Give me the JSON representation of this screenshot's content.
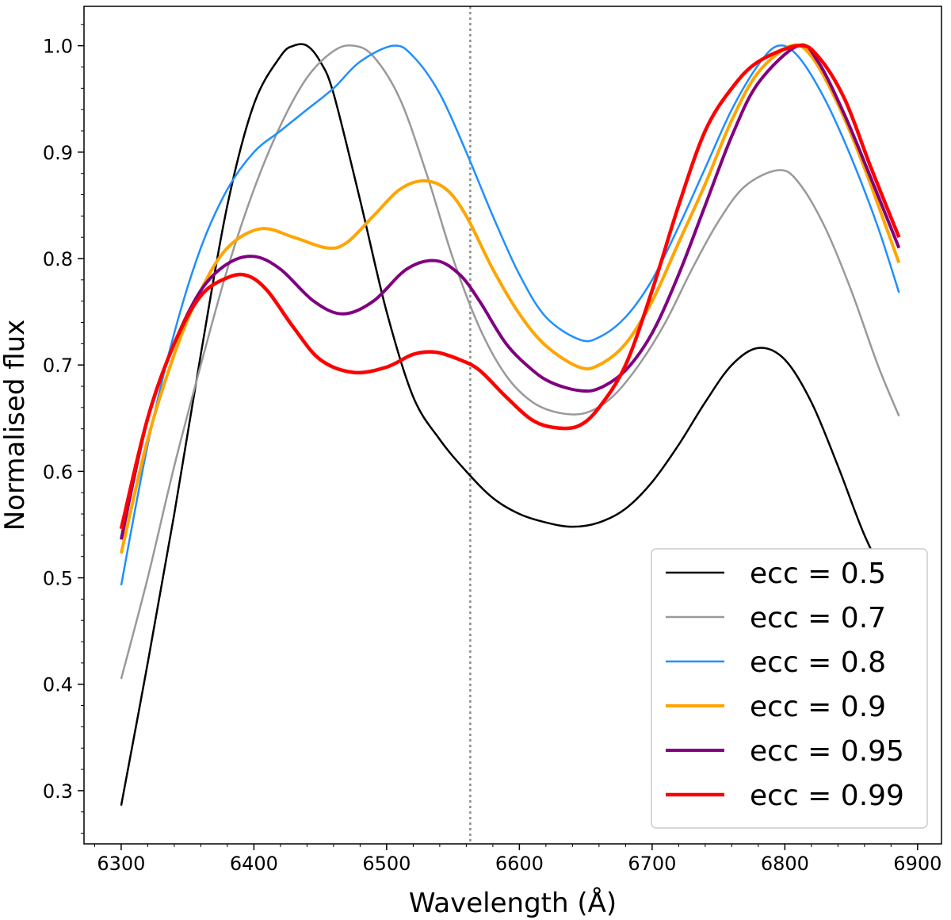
{
  "chart_data": {
    "type": "line",
    "title": "",
    "xlabel": "Wavelength (Å)",
    "ylabel": "Normalised flux",
    "xlim": [
      6272,
      6918
    ],
    "ylim": [
      0.25,
      1.037
    ],
    "xticks": [
      6300,
      6400,
      6500,
      6600,
      6700,
      6800,
      6900
    ],
    "yticks": [
      0.3,
      0.4,
      0.5,
      0.6,
      0.7,
      0.8,
      0.9,
      1.0
    ],
    "reference_line": {
      "x": 6563,
      "style": "dotted",
      "color": "#8c8c8c"
    },
    "legend_position": "lower-right",
    "grid": false,
    "series": [
      {
        "name": "ecc = 0.5",
        "color": "#000000",
        "width": 2.5,
        "x": [
          6300,
          6320,
          6340,
          6360,
          6380,
          6400,
          6420,
          6430,
          6440,
          6450,
          6460,
          6480,
          6500,
          6520,
          6540,
          6560,
          6580,
          6600,
          6620,
          6640,
          6660,
          6680,
          6700,
          6720,
          6740,
          6760,
          6780,
          6800,
          6820,
          6840,
          6860,
          6880,
          6886
        ],
        "y": [
          0.286,
          0.42,
          0.56,
          0.71,
          0.85,
          0.945,
          0.99,
          1.0,
          1.0,
          0.985,
          0.955,
          0.855,
          0.75,
          0.67,
          0.63,
          0.6,
          0.575,
          0.56,
          0.552,
          0.548,
          0.552,
          0.565,
          0.59,
          0.625,
          0.665,
          0.7,
          0.716,
          0.705,
          0.665,
          0.605,
          0.54,
          0.49,
          0.48
        ]
      },
      {
        "name": "ecc = 0.7",
        "color": "#999999",
        "width": 2.5,
        "x": [
          6300,
          6320,
          6340,
          6360,
          6380,
          6400,
          6420,
          6440,
          6460,
          6475,
          6490,
          6510,
          6530,
          6550,
          6570,
          6590,
          6610,
          6630,
          6650,
          6670,
          6690,
          6710,
          6730,
          6750,
          6770,
          6795,
          6810,
          6830,
          6850,
          6870,
          6886
        ],
        "y": [
          0.405,
          0.5,
          0.605,
          0.7,
          0.79,
          0.865,
          0.925,
          0.97,
          0.995,
          1.0,
          0.99,
          0.95,
          0.88,
          0.8,
          0.735,
          0.69,
          0.665,
          0.655,
          0.655,
          0.67,
          0.7,
          0.74,
          0.79,
          0.835,
          0.868,
          0.883,
          0.872,
          0.83,
          0.77,
          0.7,
          0.652
        ]
      },
      {
        "name": "ecc = 0.8",
        "color": "#1f8fff",
        "width": 2.5,
        "x": [
          6300,
          6320,
          6340,
          6360,
          6380,
          6400,
          6420,
          6440,
          6460,
          6480,
          6505,
          6520,
          6540,
          6560,
          6580,
          6600,
          6620,
          6645,
          6660,
          6680,
          6700,
          6720,
          6740,
          6760,
          6780,
          6795,
          6810,
          6830,
          6850,
          6870,
          6886
        ],
        "y": [
          0.493,
          0.625,
          0.73,
          0.81,
          0.865,
          0.9,
          0.92,
          0.94,
          0.96,
          0.985,
          1.0,
          0.99,
          0.955,
          0.9,
          0.84,
          0.785,
          0.745,
          0.724,
          0.726,
          0.745,
          0.78,
          0.83,
          0.885,
          0.94,
          0.982,
          1.0,
          0.99,
          0.95,
          0.895,
          0.83,
          0.768
        ]
      },
      {
        "name": "ecc = 0.9",
        "color": "#ffa500",
        "width": 4,
        "x": [
          6300,
          6320,
          6340,
          6360,
          6380,
          6405,
          6430,
          6455,
          6470,
          6490,
          6510,
          6528,
          6545,
          6560,
          6580,
          6600,
          6620,
          6645,
          6660,
          6680,
          6700,
          6720,
          6740,
          6760,
          6780,
          6805,
          6820,
          6840,
          6860,
          6886
        ],
        "y": [
          0.523,
          0.63,
          0.71,
          0.77,
          0.81,
          0.828,
          0.82,
          0.81,
          0.815,
          0.84,
          0.865,
          0.873,
          0.865,
          0.84,
          0.79,
          0.748,
          0.718,
          0.698,
          0.7,
          0.72,
          0.76,
          0.815,
          0.87,
          0.93,
          0.975,
          1.0,
          0.99,
          0.945,
          0.885,
          0.796
        ]
      },
      {
        "name": "ecc = 0.95",
        "color": "#800080",
        "width": 4,
        "x": [
          6300,
          6320,
          6340,
          6360,
          6380,
          6400,
          6420,
          6445,
          6467,
          6490,
          6515,
          6537,
          6555,
          6570,
          6590,
          6610,
          6625,
          6645,
          6660,
          6680,
          6700,
          6720,
          6740,
          6760,
          6780,
          6810,
          6825,
          6845,
          6865,
          6886
        ],
        "y": [
          0.536,
          0.65,
          0.72,
          0.77,
          0.795,
          0.802,
          0.79,
          0.76,
          0.748,
          0.76,
          0.79,
          0.798,
          0.785,
          0.76,
          0.72,
          0.695,
          0.683,
          0.676,
          0.678,
          0.695,
          0.73,
          0.785,
          0.85,
          0.915,
          0.965,
          1.0,
          0.985,
          0.935,
          0.875,
          0.81
        ]
      },
      {
        "name": "ecc = 0.99",
        "color": "#ff0000",
        "width": 4.5,
        "x": [
          6300,
          6320,
          6340,
          6360,
          6380,
          6395,
          6410,
          6430,
          6450,
          6475,
          6500,
          6520,
          6537,
          6555,
          6570,
          6590,
          6610,
          6628,
          6645,
          6660,
          6680,
          6700,
          6720,
          6740,
          6760,
          6780,
          6810,
          6825,
          6845,
          6865,
          6886
        ],
        "y": [
          0.546,
          0.65,
          0.72,
          0.765,
          0.782,
          0.784,
          0.77,
          0.735,
          0.705,
          0.693,
          0.698,
          0.71,
          0.712,
          0.705,
          0.695,
          0.67,
          0.648,
          0.641,
          0.643,
          0.66,
          0.7,
          0.77,
          0.85,
          0.92,
          0.96,
          0.985,
          1.0,
          0.99,
          0.95,
          0.885,
          0.82
        ]
      }
    ]
  }
}
